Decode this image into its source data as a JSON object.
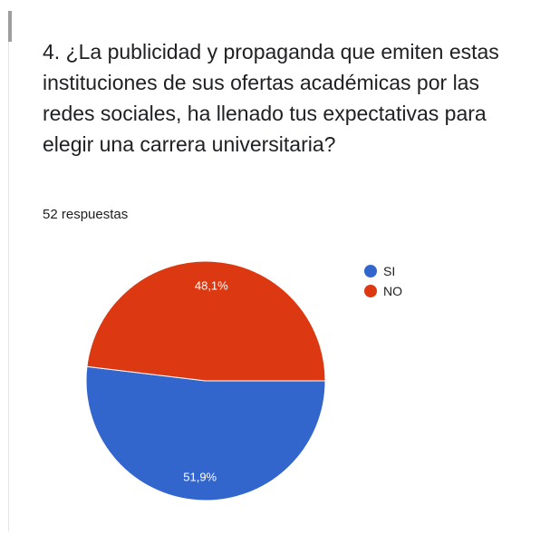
{
  "question": {
    "title": "4. ¿La publicidad y propaganda que emiten estas instituciones de sus ofertas académicas por las redes sociales, ha llenado tus expectativas para elegir una carrera universitaria?",
    "responses": "52 respuestas"
  },
  "chart_data": {
    "type": "pie",
    "categories": [
      "SI",
      "NO"
    ],
    "values": [
      51.9,
      48.1
    ],
    "labels": [
      "51,9%",
      "48,1%"
    ],
    "colors": [
      "#3366cc",
      "#dc3912"
    ],
    "legend_position": "top-right",
    "total_responses": 52
  }
}
